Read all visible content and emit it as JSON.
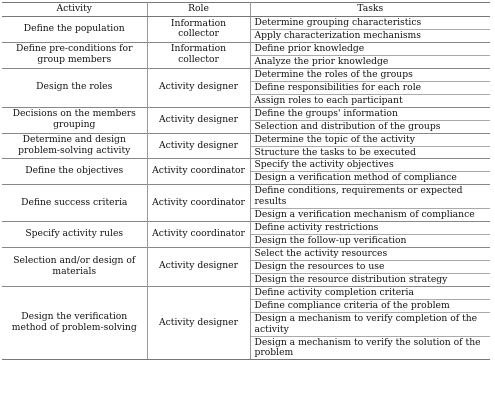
{
  "table": {
    "headers": {
      "activity": "Activity",
      "role": "Role",
      "tasks": "Tasks"
    },
    "rows": [
      {
        "activity": "Define the population",
        "role": "Information collector",
        "tasks": [
          "Determine grouping characteristics",
          "Apply characterization mechanisms"
        ]
      },
      {
        "activity": "Define pre-conditions for group members",
        "role": "Information collector",
        "tasks": [
          "Define prior knowledge",
          "Analyze the prior knowledge"
        ]
      },
      {
        "activity": "Design the roles",
        "role": "Activity designer",
        "tasks": [
          "Determine the roles of the groups",
          "Define responsibilities for each role",
          "Assign roles to each participant"
        ]
      },
      {
        "activity": "Decisions on the members grouping",
        "role": "Activity designer",
        "tasks": [
          "Define the groups' information",
          "Selection and distribution of the groups"
        ]
      },
      {
        "activity": "Determine and design problem-solving activity",
        "role": "Activity designer",
        "tasks": [
          "Determine the topic of the activity",
          "Structure the tasks to be executed"
        ]
      },
      {
        "activity": "Define the objectives",
        "role": "Activity coordinator",
        "tasks": [
          "Specify the activity objectives",
          "Design a verification method of compliance"
        ]
      },
      {
        "activity": "Define success criteria",
        "role": "Activity coordinator",
        "tasks": [
          "Define conditions, requirements or expected results",
          "Design a verification mechanism of compliance"
        ]
      },
      {
        "activity": "Specify activity rules",
        "role": "Activity coordinator",
        "tasks": [
          "Define activity restrictions",
          "Design the follow-up verification"
        ]
      },
      {
        "activity": "Selection and/or design of materials",
        "role": "Activity designer",
        "tasks": [
          "Select the activity resources",
          "Design the resources to use",
          "Design the resource distribution strategy"
        ]
      },
      {
        "activity": "Design the verification method of problem-solving",
        "role": "Activity designer",
        "tasks": [
          "Define activity completion criteria",
          "Define compliance criteria of the problem",
          "Design a mechanism to verify completion of the activity",
          "Design a mechanism to verify the solution of the problem"
        ]
      }
    ]
  }
}
